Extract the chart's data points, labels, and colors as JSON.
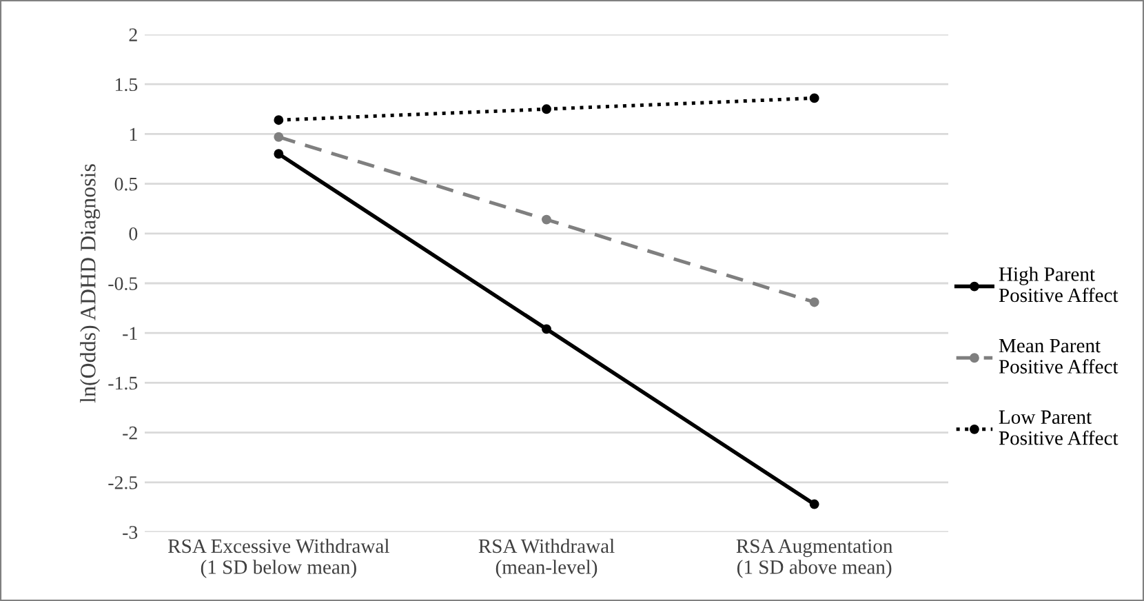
{
  "chart_data": {
    "type": "line",
    "ylabel": "ln(Odds) ADHD Diagnosis",
    "categories": [
      "RSA Excessive Withdrawal\n(1 SD below mean)",
      "RSA Withdrawal\n(mean-level)",
      "RSA Augmentation\n(1 SD above mean)"
    ],
    "series": [
      {
        "name": "High Parent\nPositive Affect",
        "color": "#000000",
        "line_style": "solid",
        "values": [
          0.8,
          -0.96,
          -2.72
        ]
      },
      {
        "name": "Mean Parent\nPositive Affect",
        "color": "#7f7f7f",
        "line_style": "dashed",
        "values": [
          0.97,
          0.14,
          -0.69
        ]
      },
      {
        "name": "Low Parent\nPositive Affect",
        "color": "#000000",
        "line_style": "dotted",
        "values": [
          1.14,
          1.25,
          1.36
        ]
      }
    ],
    "ylim": [
      -3,
      2
    ],
    "yticks": [
      -3,
      -2.5,
      -2,
      -1.5,
      -1,
      -0.5,
      0,
      0.5,
      1,
      1.5,
      2
    ],
    "grid": "y",
    "legend": "right",
    "marker": "circle"
  }
}
